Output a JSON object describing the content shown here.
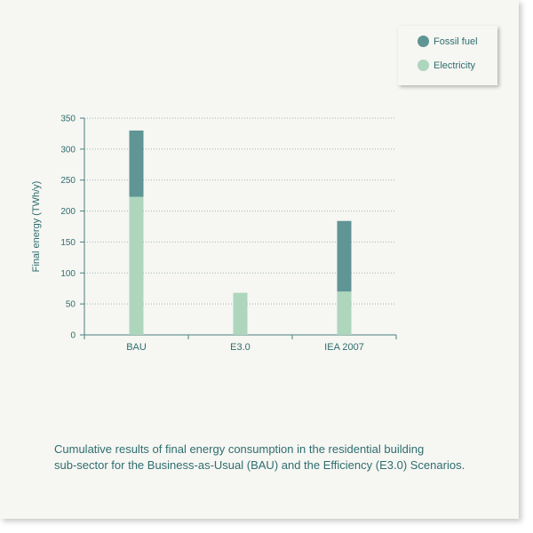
{
  "legend": {
    "items": [
      {
        "label": "Fossil fuel",
        "color": "#5f9594"
      },
      {
        "label": "Electricity",
        "color": "#add6bd"
      }
    ]
  },
  "caption": {
    "line1": "Cumulative results of final energy consumption in the residential building",
    "line2": "sub-sector for the Business-as-Usual (BAU) and the Efficiency (E3.0) Scenarios."
  },
  "chart_data": {
    "type": "bar",
    "stacked": true,
    "categories": [
      "BAU",
      "E3.0",
      "IEA 2007"
    ],
    "series": [
      {
        "name": "Electricity",
        "values": [
          223,
          68,
          70
        ],
        "color": "#add6bd"
      },
      {
        "name": "Fossil fuel",
        "values": [
          107,
          0,
          114
        ],
        "color": "#5f9594"
      }
    ],
    "ylabel": "Final energy (TWh/y)",
    "ylim": [
      0,
      350
    ],
    "yticks": [
      0,
      50,
      100,
      150,
      200,
      250,
      300,
      350
    ],
    "grid": true,
    "legend_position": "top-right",
    "text_color": "#2e6e6e"
  }
}
